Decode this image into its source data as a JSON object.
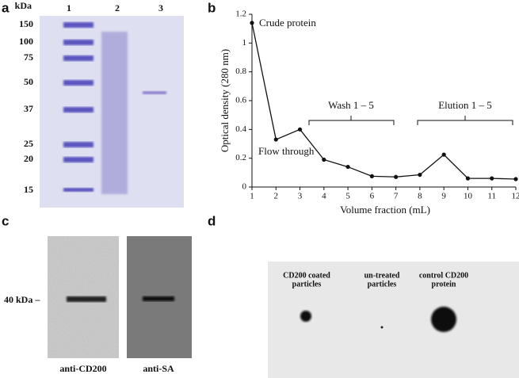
{
  "panel_labels": [
    "a",
    "b",
    "c",
    "d"
  ],
  "gel": {
    "unit": "kDa",
    "markers": [
      "150",
      "100",
      "75",
      "50",
      "37",
      "25",
      "20",
      "15"
    ],
    "lanes": [
      "1",
      "2",
      "3"
    ]
  },
  "chart_data": {
    "type": "line",
    "x_label": "Volume fraction (mL)",
    "y_label": "Optical density (280 nm)",
    "x": [
      1,
      2,
      3,
      4,
      5,
      6,
      7,
      8,
      9,
      10,
      11,
      12
    ],
    "values": [
      1.14,
      0.33,
      0.4,
      0.19,
      0.14,
      0.075,
      0.07,
      0.085,
      0.225,
      0.06,
      0.06,
      0.055
    ],
    "color": "#111111",
    "xlim": [
      1,
      12
    ],
    "xticks": [
      1,
      2,
      3,
      4,
      5,
      6,
      7,
      8,
      9,
      10,
      11,
      12
    ],
    "ylim": [
      0,
      1.2
    ],
    "yticks": [
      0,
      0.2,
      0.4,
      0.6,
      0.8,
      1,
      1.2
    ],
    "annotations": [
      "Crude protein",
      "Flow through",
      "Wash 1 – 5",
      "Elution 1 – 5"
    ]
  },
  "western": {
    "marker": "40 kDa –",
    "blots": [
      "anti-CD200",
      "anti-SA"
    ]
  },
  "dot_blot": {
    "samples": [
      [
        "CD200 coated",
        "particles"
      ],
      [
        "un-treated",
        "particles"
      ],
      [
        "control CD200",
        "protein"
      ]
    ]
  }
}
